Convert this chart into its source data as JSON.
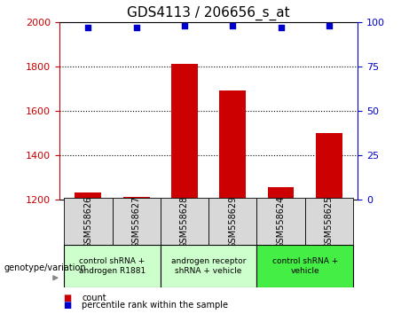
{
  "title": "GDS4113 / 206656_s_at",
  "samples": [
    "GSM558626",
    "GSM558627",
    "GSM558628",
    "GSM558629",
    "GSM558624",
    "GSM558625"
  ],
  "counts": [
    1230,
    1210,
    1810,
    1690,
    1255,
    1500
  ],
  "percentile_ranks": [
    97,
    97,
    98,
    98,
    97,
    98
  ],
  "ymin": 1200,
  "ymax": 2000,
  "yticks": [
    1200,
    1400,
    1600,
    1800,
    2000
  ],
  "right_yticks": [
    0,
    25,
    50,
    75,
    100
  ],
  "bar_color": "#cc0000",
  "dot_color": "#0000cc",
  "groups_info": [
    {
      "start": 0,
      "end": 2,
      "color": "#ccffcc",
      "label": "control shRNA +\nandrogen R1881"
    },
    {
      "start": 2,
      "end": 4,
      "color": "#ccffcc",
      "label": "androgen receptor\nshRNA + vehicle"
    },
    {
      "start": 4,
      "end": 6,
      "color": "#44ee44",
      "label": "control shRNA +\nvehicle"
    }
  ],
  "sample_box_color": "#d8d8d8",
  "genotype_label": "genotype/variation",
  "legend_count_color": "#cc0000",
  "legend_pct_color": "#0000cc",
  "left_axis_color": "#cc0000",
  "right_axis_color": "#0000cc",
  "title_fontsize": 11,
  "bar_width": 0.55
}
